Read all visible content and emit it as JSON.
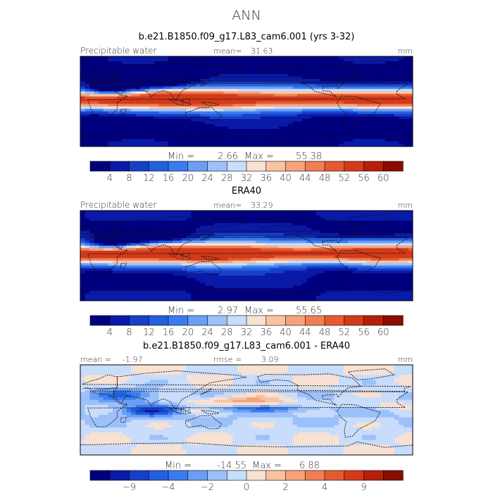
{
  "figure": {
    "title": "ANN"
  },
  "colors": {
    "precip_scale": [
      "#00007f",
      "#0a1aa8",
      "#1740c8",
      "#245fe0",
      "#3a7cf0",
      "#6a9ff5",
      "#9cc0fa",
      "#c8dcfb",
      "#f7e1d3",
      "#f9c3a3",
      "#f7a27b",
      "#f07e55",
      "#e55a32",
      "#d33a1a",
      "#b61f0a",
      "#8a0d00"
    ],
    "diff_scale": [
      "#00007f",
      "#0a1aa8",
      "#1740c8",
      "#245fe0",
      "#3a7cf0",
      "#6a9ff5",
      "#9cc0fa",
      "#c8dcfb",
      "#f7e1d3",
      "#f9c3a3",
      "#f7a27b",
      "#f07e55",
      "#e55a32",
      "#d33a1a",
      "#b61f0a",
      "#8a0d00"
    ]
  },
  "chart_data": [
    {
      "type": "heatmap",
      "title": "b.e21.B1850.f09_g17.L83_cam6.001 (yrs 3-32)",
      "variable_label": "Precipitable water",
      "units": "mm",
      "mean_label": "mean=",
      "mean": "31.63",
      "min_label": "Min =",
      "min": "2.66",
      "max_label": "Max =",
      "max": "55.38",
      "colorbar_ticks": [
        "4",
        "8",
        "12",
        "16",
        "20",
        "24",
        "28",
        "32",
        "36",
        "40",
        "44",
        "48",
        "52",
        "56",
        "60"
      ],
      "value_range": [
        2.66,
        55.38
      ],
      "map_projection": "cylindrical equidistant, longitudes 0-360"
    },
    {
      "type": "heatmap",
      "title": "ERA40",
      "variable_label": "Precipitable water",
      "units": "mm",
      "mean_label": "mean=",
      "mean": "33.29",
      "min_label": "Min =",
      "min": "2.97",
      "max_label": "Max =",
      "max": "55.65",
      "colorbar_ticks": [
        "4",
        "8",
        "12",
        "16",
        "20",
        "24",
        "28",
        "32",
        "36",
        "40",
        "44",
        "48",
        "52",
        "56",
        "60"
      ],
      "value_range": [
        2.97,
        55.65
      ],
      "map_projection": "cylindrical equidistant, longitudes 0-360"
    },
    {
      "type": "heatmap",
      "title": "b.e21.B1850.f09_g17.L83_cam6.001 - ERA40",
      "units": "mm",
      "mean_label": "mean =",
      "mean": "-1.97",
      "rmse_label": "rmse =",
      "rmse": "3.09",
      "min_label": "Min =",
      "min": "-14.55",
      "max_label": "Max =",
      "max": "6.88",
      "colorbar_ticks": [
        "-9",
        "-4",
        "-2",
        "0",
        "2",
        "4",
        "9"
      ],
      "value_range": [
        -14.55,
        6.88
      ],
      "map_projection": "cylindrical equidistant, longitudes 0-360"
    }
  ]
}
